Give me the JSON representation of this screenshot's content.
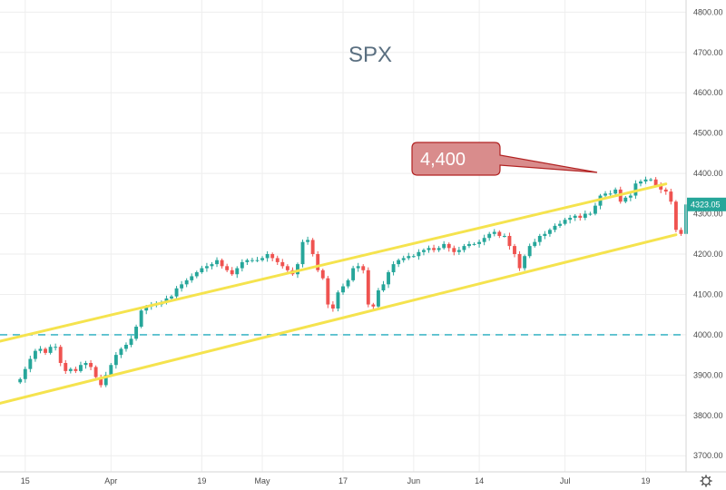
{
  "chart_data": {
    "type": "candlestick",
    "title": "SPX",
    "annotation": "4,400",
    "last_price": "4323.05",
    "xlabel": "",
    "ylabel": "",
    "ylim": [
      3660,
      4830
    ],
    "y_ticks": [
      "3700.00",
      "3800.00",
      "3900.00",
      "4000.00",
      "4100.00",
      "4200.00",
      "4300.00",
      "4400.00",
      "4500.00",
      "4600.00",
      "4700.00",
      "4800.00"
    ],
    "x_ticks": [
      {
        "label": "15",
        "day": 1
      },
      {
        "label": "Apr",
        "day": 18
      },
      {
        "label": "19",
        "day": 36
      },
      {
        "label": "May",
        "day": 48
      },
      {
        "label": "17",
        "day": 64
      },
      {
        "label": "Jun",
        "day": 78
      },
      {
        "label": "14",
        "day": 91
      },
      {
        "label": "Jul",
        "day": 108
      },
      {
        "label": "19",
        "day": 124
      }
    ],
    "x_range": [
      -4,
      132
    ],
    "closes": [
      3890,
      3915,
      3940,
      3960,
      3965,
      3955,
      3970,
      3970,
      3930,
      3910,
      3915,
      3910,
      3925,
      3930,
      3920,
      3895,
      3875,
      3900,
      3925,
      3950,
      3965,
      3975,
      3990,
      4020,
      4060,
      4070,
      4075,
      4075,
      4080,
      4090,
      4095,
      4115,
      4125,
      4135,
      4145,
      4155,
      4165,
      4170,
      4175,
      4185,
      4170,
      4160,
      4150,
      4165,
      4180,
      4185,
      4185,
      4185,
      4190,
      4200,
      4190,
      4180,
      4170,
      4160,
      4150,
      4175,
      4230,
      4235,
      4200,
      4160,
      4140,
      4075,
      4065,
      4105,
      4120,
      4135,
      4165,
      4170,
      4160,
      4075,
      4070,
      4110,
      4125,
      4155,
      4175,
      4185,
      4190,
      4195,
      4195,
      4205,
      4210,
      4215,
      4210,
      4215,
      4225,
      4215,
      4205,
      4210,
      4220,
      4225,
      4225,
      4230,
      4240,
      4250,
      4255,
      4245,
      4245,
      4220,
      4200,
      4165,
      4195,
      4220,
      4230,
      4245,
      4250,
      4260,
      4270,
      4275,
      4285,
      4290,
      4295,
      4290,
      4300,
      4300,
      4320,
      4345,
      4350,
      4350,
      4360,
      4330,
      4340,
      4345,
      4375,
      4380,
      4385,
      4385,
      4370,
      4360,
      4355,
      4330,
      4260,
      4250,
      4323
    ],
    "trend_lines": [
      {
        "name": "upper",
        "points": [
          [
            -4,
            3984
          ],
          [
            128,
            4374
          ]
        ],
        "color": "#f5e34e"
      },
      {
        "name": "lower",
        "points": [
          [
            -4,
            3830
          ],
          [
            130,
            4248
          ]
        ],
        "color": "#f5e34e"
      }
    ],
    "horizontal_line": {
      "value": 4000,
      "color": "#44b8c7",
      "style": "dashed"
    },
    "colors": {
      "up": "#26a69a",
      "down": "#ef5350",
      "grid": "#eeeeee",
      "callout_fill": "#d98c8c",
      "callout_border": "#b22222",
      "price_tag": "#26a69a"
    },
    "grid": true
  }
}
